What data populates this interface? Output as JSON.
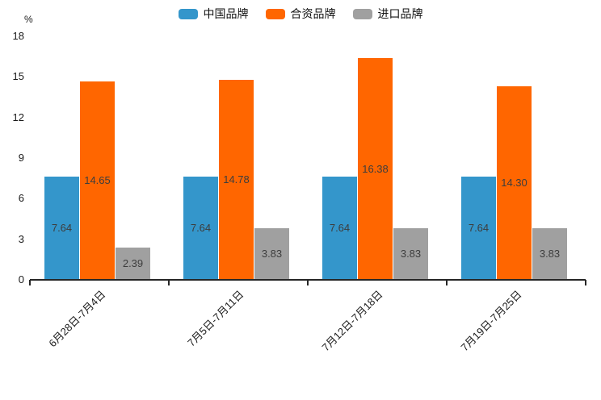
{
  "chart_data": {
    "type": "bar",
    "title": "",
    "xlabel": "",
    "ylabel": "%",
    "ylim": [
      0,
      18
    ],
    "yticks": [
      0,
      3,
      6,
      9,
      12,
      15,
      18
    ],
    "grid": false,
    "legend_position": "top",
    "value_labels_shown": true,
    "categories": [
      "6月28日-7月4日",
      "7月5日-7月11日",
      "7月12日-7月18日",
      "7月19日-7月25日"
    ],
    "series": [
      {
        "name": "中国品牌",
        "color": "#3496cb",
        "values": [
          7.64,
          7.64,
          7.64,
          7.64
        ],
        "labels": [
          "7.64",
          "7.64",
          "7.64",
          "7.64"
        ]
      },
      {
        "name": "合资品牌",
        "color": "#ff6600",
        "values": [
          14.65,
          14.78,
          16.38,
          14.3
        ],
        "labels": [
          "14.65",
          "14.78",
          "16.38",
          "14.30"
        ]
      },
      {
        "name": "进口品牌",
        "color": "#a0a0a0",
        "values": [
          2.39,
          3.83,
          3.83,
          3.83
        ],
        "labels": [
          "2.39",
          "3.83",
          "3.83",
          "3.83"
        ]
      }
    ]
  }
}
